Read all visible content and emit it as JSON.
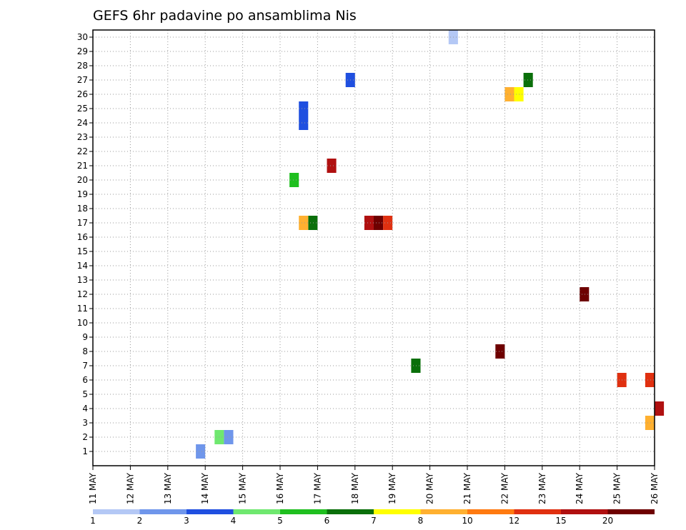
{
  "chart_data": {
    "type": "heatmap",
    "title": "GEFS 6hr padavine po ansamblima Nis",
    "x_ticks": [
      "11 MAY",
      "12 MAY",
      "13 MAY",
      "14 MAY",
      "15 MAY",
      "16 MAY",
      "17 MAY",
      "18 MAY",
      "19 MAY",
      "20 MAY",
      "21 MAY",
      "22 MAY",
      "23 MAY",
      "24 MAY",
      "25 MAY",
      "26 MAY"
    ],
    "y_ticks": [
      "1",
      "2",
      "3",
      "4",
      "5",
      "6",
      "7",
      "8",
      "9",
      "10",
      "11",
      "12",
      "13",
      "14",
      "15",
      "16",
      "17",
      "18",
      "19",
      "20",
      "21",
      "22",
      "23",
      "24",
      "25",
      "26",
      "27",
      "28",
      "29",
      "30"
    ],
    "ylim": [
      1,
      30
    ],
    "grid": true,
    "x_step_hours": 6,
    "legend": {
      "placement": "bottom",
      "labels": [
        "1",
        "2",
        "3",
        "4",
        "5",
        "6",
        "7",
        "8",
        "10",
        "12",
        "15",
        "20"
      ],
      "colors": [
        "#b4c8f5",
        "#6f96eb",
        "#1f4fe0",
        "#6fe86f",
        "#1fbf1f",
        "#0a6f0a",
        "#ffff00",
        "#ffb030",
        "#ff7a10",
        "#e03010",
        "#b01010",
        "#6e0000"
      ]
    },
    "cells": [
      {
        "x": "20 MAY 12Z",
        "y": 30,
        "v": 1
      },
      {
        "x": "13 MAY 18Z",
        "y": 1,
        "v": 2
      },
      {
        "x": "14 MAY 06Z",
        "y": 2,
        "v": 4
      },
      {
        "x": "14 MAY 12Z",
        "y": 2,
        "v": 2
      },
      {
        "x": "16 MAY 12Z",
        "y": 25,
        "v": 3
      },
      {
        "x": "16 MAY 12Z",
        "y": 24,
        "v": 3
      },
      {
        "x": "17 MAY 18Z",
        "y": 27,
        "v": 3
      },
      {
        "x": "22 MAY 06Z",
        "y": 26,
        "v": 7
      },
      {
        "x": "22 MAY 00Z",
        "y": 26,
        "v": 8
      },
      {
        "x": "22 MAY 12Z",
        "y": 27,
        "v": 6
      },
      {
        "x": "18 MAY 06Z",
        "y": 17,
        "v": 15
      },
      {
        "x": "18 MAY 12Z",
        "y": 17,
        "v": 20
      },
      {
        "x": "18 MAY 18Z",
        "y": 17,
        "v": 12
      },
      {
        "x": "16 MAY 18Z",
        "y": 17,
        "v": 6
      },
      {
        "x": "16 MAY 12Z",
        "y": 17,
        "v": 8
      },
      {
        "x": "24 MAY 00Z",
        "y": 12,
        "v": 20
      },
      {
        "x": "21 MAY 18Z",
        "y": 8,
        "v": 20
      },
      {
        "x": "16 MAY 06Z",
        "y": 20,
        "v": 5
      },
      {
        "x": "17 MAY 06Z",
        "y": 21,
        "v": 15
      },
      {
        "x": "19 MAY 12Z",
        "y": 7,
        "v": 6
      },
      {
        "x": "25 MAY 00Z",
        "y": 6,
        "v": 12
      },
      {
        "x": "25 MAY 18Z",
        "y": 6,
        "v": 12
      },
      {
        "x": "26 MAY 00Z",
        "y": 4,
        "v": 15
      },
      {
        "x": "25 MAY 18Z",
        "y": 3,
        "v": 8
      }
    ]
  }
}
